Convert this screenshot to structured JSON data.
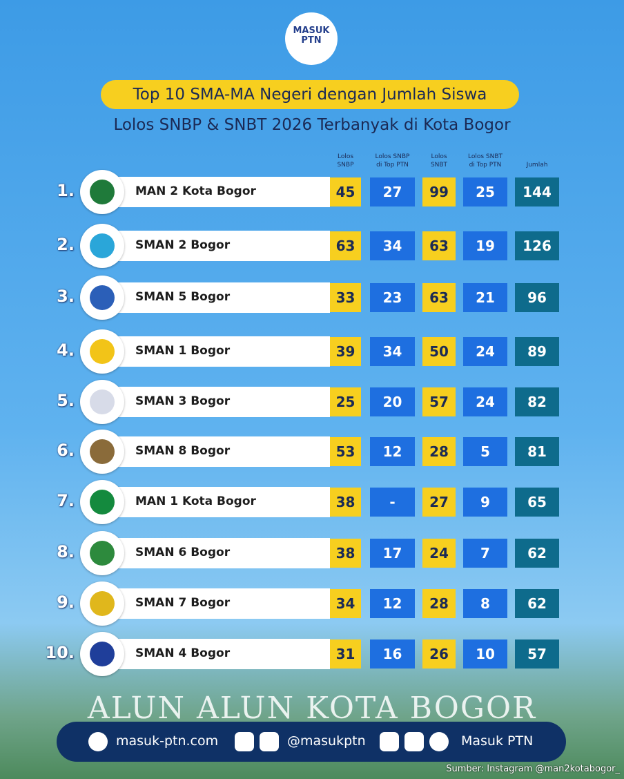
{
  "logo": {
    "line1": "MASUK",
    "line2": "PTN"
  },
  "header": {
    "title": "Top 10 SMA-MA Negeri dengan Jumlah Siswa",
    "subtitle": "Lolos SNBP & SNBT 2026 Terbanyak di Kota Bogor"
  },
  "table": {
    "columns": [
      [
        "Lolos",
        "SNBP"
      ],
      [
        "Lolos SNBP",
        "di Top PTN"
      ],
      [
        "Lolos",
        "SNBT"
      ],
      [
        "Lolos SNBT",
        "di Top PTN"
      ],
      [
        "Jumlah"
      ]
    ],
    "rows": [
      {
        "rank": "1.",
        "name": "MAN 2 Kota Bogor",
        "cells": [
          45,
          27,
          99,
          25,
          144
        ]
      },
      {
        "rank": "2.",
        "name": "SMAN 2 Bogor",
        "cells": [
          63,
          34,
          63,
          19,
          126
        ]
      },
      {
        "rank": "3.",
        "name": "SMAN 5 Bogor",
        "cells": [
          33,
          23,
          63,
          21,
          96
        ]
      },
      {
        "rank": "4.",
        "name": "SMAN 1 Bogor",
        "cells": [
          39,
          34,
          50,
          24,
          89
        ]
      },
      {
        "rank": "5.",
        "name": "SMAN 3 Bogor",
        "cells": [
          25,
          20,
          57,
          24,
          82
        ]
      },
      {
        "rank": "6.",
        "name": "SMAN 8 Bogor",
        "cells": [
          53,
          12,
          28,
          5,
          81
        ]
      },
      {
        "rank": "7.",
        "name": "MAN 1 Kota Bogor",
        "cells": [
          38,
          "-",
          27,
          9,
          65
        ]
      },
      {
        "rank": "8.",
        "name": "SMAN 6 Bogor",
        "cells": [
          38,
          17,
          24,
          7,
          62
        ]
      },
      {
        "rank": "9.",
        "name": "SMAN 7 Bogor",
        "cells": [
          34,
          12,
          28,
          8,
          62
        ]
      },
      {
        "rank": "10.",
        "name": "SMAN 4 Bogor",
        "cells": [
          31,
          16,
          26,
          10,
          57
        ]
      }
    ]
  },
  "background_text": "ALUN ALUN KOTA BOGOR",
  "footer": {
    "website": "masuk-ptn.com",
    "handle": "@masukptn",
    "brand": "Masuk PTN",
    "source": "Sumber: Instagram @man2kotabogor_"
  }
}
